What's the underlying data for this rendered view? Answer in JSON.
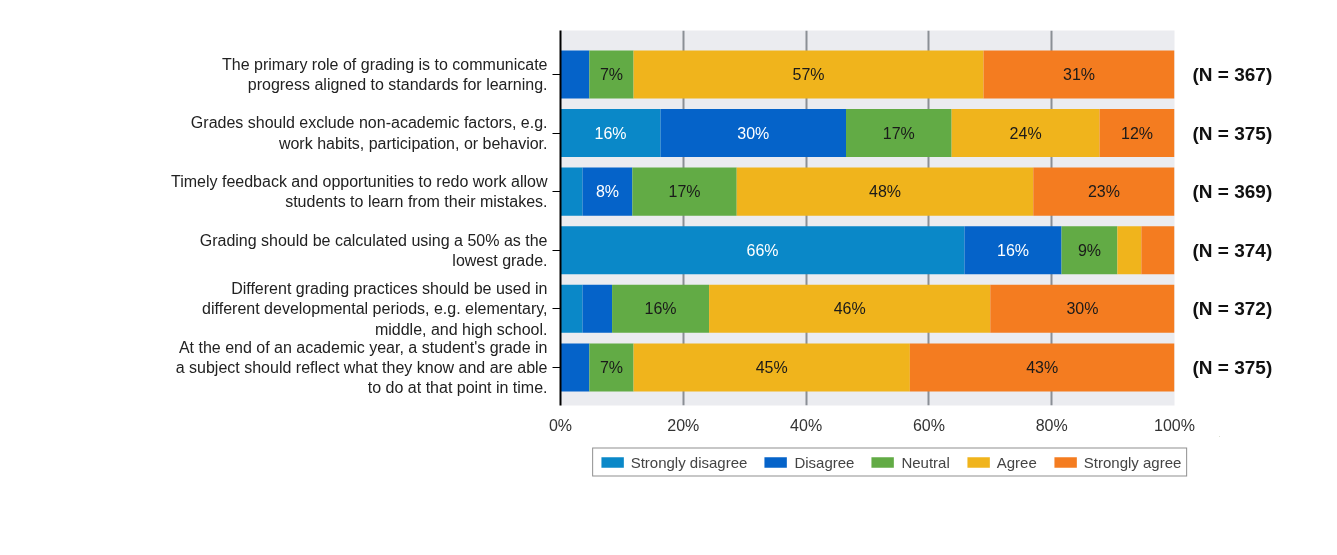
{
  "chart_data": {
    "type": "bar",
    "orientation": "horizontal",
    "stacked": true,
    "categories": [
      "The primary role of grading is to communicate progress aligned to standards for learning.",
      "Grades should exclude non-academic factors, e.g. work habits, participation, or behavior.",
      "Timely feedback and opportunities to redo work allow students to learn from their mistakes.",
      "Grading should be calculated using a 50% as the lowest grade.",
      "Different grading practices should be used in different developmental periods, e.g. elementary, middle, and high school.",
      "At the end of an academic year, a student's grade in a subject should reflect what they know and are able to do at that point in time."
    ],
    "series": [
      {
        "name": "Strongly disagree",
        "color": "#0a88c8",
        "values": [
          null,
          16.3,
          3.6,
          65.8,
          3.6,
          null
        ],
        "value_labels": [
          null,
          "16%",
          null,
          "66%",
          null,
          null
        ]
      },
      {
        "name": "Disagree",
        "color": "#0563c9",
        "values": [
          4.7,
          30.2,
          8.1,
          15.8,
          4.8,
          4.7
        ],
        "value_labels": [
          null,
          "30%",
          "8%",
          "16%",
          null,
          null
        ]
      },
      {
        "name": "Neutral",
        "color": "#62ab45",
        "values": [
          7.2,
          17.2,
          17.0,
          9.1,
          15.8,
          7.2
        ],
        "value_labels": [
          "7%",
          "17%",
          "17%",
          "9%",
          "16%",
          "7%"
        ]
      },
      {
        "name": "Agree",
        "color": "#f0b41c",
        "values": [
          57.0,
          24.1,
          48.3,
          3.9,
          45.8,
          45.0
        ],
        "value_labels": [
          "57%",
          "24%",
          "48%",
          null,
          "46%",
          "45%"
        ]
      },
      {
        "name": "Strongly agree",
        "color": "#f47c20",
        "values": [
          31.1,
          12.2,
          23.0,
          5.4,
          30.0,
          43.1
        ],
        "value_labels": [
          "31%",
          "12%",
          "23%",
          null,
          "30%",
          "43%"
        ]
      }
    ],
    "annotations": [
      "(N = 367)",
      "(N = 375)",
      "(N = 369)",
      "(N = 374)",
      "(N = 372)",
      "(N = 375)"
    ],
    "xlim": [
      0,
      100
    ],
    "xticks": [
      {
        "value": 0,
        "label": "0%"
      },
      {
        "value": 20,
        "label": "20%"
      },
      {
        "value": 40,
        "label": "40%"
      },
      {
        "value": 60,
        "label": "60%"
      },
      {
        "value": 80,
        "label": "80%"
      },
      {
        "value": 100,
        "label": "100%"
      }
    ],
    "grid": "x",
    "legend": "bottom"
  }
}
